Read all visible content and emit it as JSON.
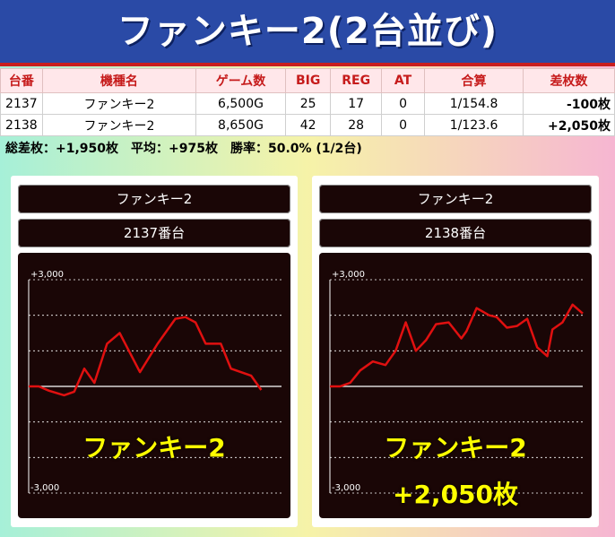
{
  "header": {
    "title": "ファンキー2(2台並び)"
  },
  "table": {
    "columns": [
      "台番",
      "機種名",
      "ゲーム数",
      "BIG",
      "REG",
      "AT",
      "合算",
      "差枚数"
    ],
    "rows": [
      [
        "2137",
        "ファンキー2",
        "6,500G",
        "25",
        "17",
        "0",
        "1/154.8",
        "-100枚"
      ],
      [
        "2138",
        "ファンキー2",
        "8,650G",
        "42",
        "28",
        "0",
        "1/123.6",
        "+2,050枚"
      ]
    ]
  },
  "summary": "総差枚：+1,950枚　平均：+975枚　勝率：50.0% (1/2台)",
  "colors": {
    "negative": "#e01010",
    "positive": "#1040e8",
    "line": "#e01010"
  },
  "chart_data": [
    {
      "type": "line",
      "model": "ファンキー2",
      "machine": "2137番台",
      "overlay_label": "ファンキー2",
      "overlay_diff": "",
      "ytick_labels": [
        "+3,000",
        "-3,000"
      ],
      "ylim": [
        -3000,
        3000
      ],
      "grid": true,
      "x": [
        0,
        4,
        8,
        14,
        18,
        22,
        26,
        31,
        36,
        44,
        51,
        58,
        62,
        66,
        70,
        76,
        80,
        88,
        92
      ],
      "y": [
        0,
        0,
        -120,
        -250,
        -150,
        500,
        100,
        1200,
        1500,
        400,
        1200,
        1900,
        1950,
        1800,
        1200,
        1200,
        500,
        300,
        -100
      ],
      "x_max": 100
    },
    {
      "type": "line",
      "model": "ファンキー2",
      "machine": "2138番台",
      "overlay_label": "ファンキー2",
      "overlay_diff": "+2,050枚",
      "ytick_labels": [
        "+3,000",
        "-3,000"
      ],
      "ylim": [
        -3000,
        3000
      ],
      "grid": true,
      "x": [
        0,
        4,
        8,
        12,
        17,
        22,
        26,
        30,
        34,
        38,
        42,
        47,
        52,
        54,
        58,
        63,
        66,
        70,
        74,
        78,
        82,
        86,
        88,
        92,
        96,
        100
      ],
      "y": [
        0,
        0,
        100,
        450,
        700,
        600,
        1000,
        1800,
        1000,
        1300,
        1750,
        1800,
        1350,
        1550,
        2200,
        2000,
        1950,
        1650,
        1700,
        1900,
        1100,
        850,
        1600,
        1800,
        2300,
        2050
      ],
      "x_max": 100
    }
  ]
}
